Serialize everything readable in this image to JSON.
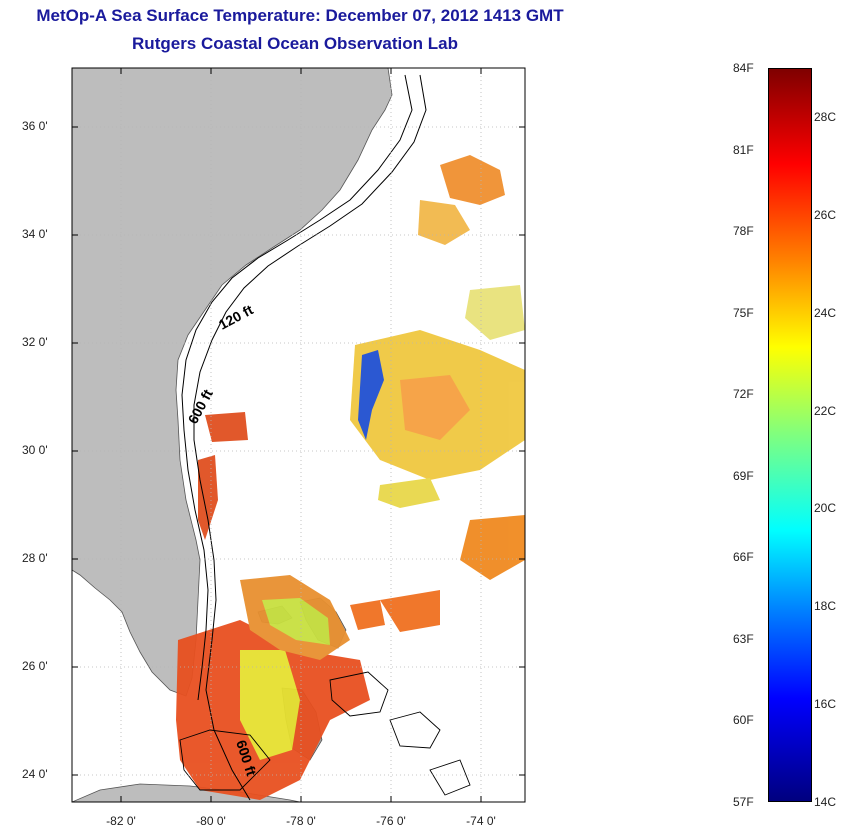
{
  "header": {
    "title": "MetOp-A Sea Surface Temperature:  December 07, 2012 1413 GMT",
    "subtitle": "Rutgers Coastal Ocean Observation Lab"
  },
  "map": {
    "lon_range": [
      -83,
      -73
    ],
    "lat_range": [
      23,
      37
    ],
    "lat_ticks": [
      {
        "value": 36,
        "label": "36 0'"
      },
      {
        "value": 34,
        "label": "34 0'"
      },
      {
        "value": 32,
        "label": "32 0'"
      },
      {
        "value": 30,
        "label": "30 0'"
      },
      {
        "value": 28,
        "label": "28 0'"
      },
      {
        "value": 26,
        "label": "26 0'"
      },
      {
        "value": 24,
        "label": "24 0'"
      }
    ],
    "lon_ticks": [
      {
        "value": -82,
        "label": "-82 0'"
      },
      {
        "value": -80,
        "label": "-80 0'"
      },
      {
        "value": -78,
        "label": "-78 0'"
      },
      {
        "value": -76,
        "label": "-76 0'"
      },
      {
        "value": -74,
        "label": "-74 0'"
      }
    ],
    "contour_labels": [
      "120 ft",
      "600 ft",
      "600 ft"
    ],
    "land_color": "#bdbdbd",
    "ocean_color": "#ffffff"
  },
  "colorbar": {
    "fahrenheit": [
      "84F",
      "81F",
      "78F",
      "75F",
      "72F",
      "69F",
      "66F",
      "63F",
      "60F",
      "57F"
    ],
    "celsius": [
      "28C",
      "26C",
      "24C",
      "22C",
      "20C",
      "18C",
      "16C",
      "14C"
    ],
    "range_f": [
      57,
      84
    ],
    "range_c": [
      14,
      29
    ],
    "colors": [
      "#00007f",
      "#0000ff",
      "#0080ff",
      "#00ffff",
      "#7fff7f",
      "#ffff00",
      "#ff8000",
      "#ff0000",
      "#7f0000"
    ]
  }
}
